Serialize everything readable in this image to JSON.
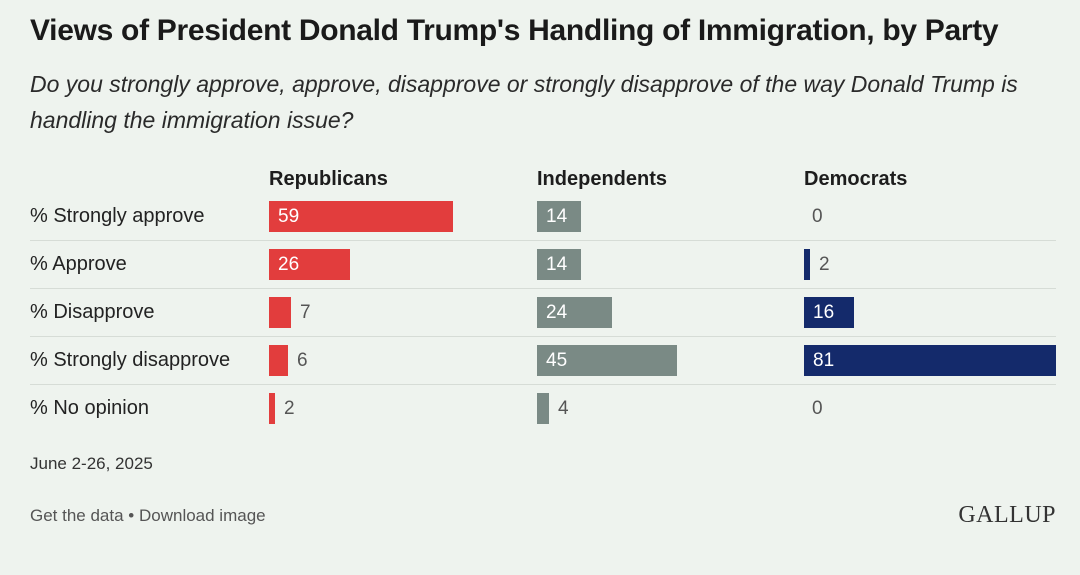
{
  "title": "Views of President Donald Trump's Handling of Immigration, by Party",
  "subtitle": "Do you strongly approve, approve, disapprove or strongly disapprove of the way Donald Trump is handling the immigration issue?",
  "date_note": "June 2-26, 2025",
  "footer": {
    "get_data": "Get the data",
    "separator": " • ",
    "download": "Download image"
  },
  "logo": "GALLUP",
  "colors": {
    "republicans": "#e23d3d",
    "independents": "#7a8a85",
    "democrats": "#142a6b"
  },
  "chart_data": {
    "type": "bar",
    "orientation": "horizontal",
    "title": "Views of President Donald Trump's Handling of Immigration, by Party",
    "categories": [
      "% Strongly approve",
      "% Approve",
      "% Disapprove",
      "% Strongly disapprove",
      "% No opinion"
    ],
    "series": [
      {
        "name": "Republicans",
        "values": [
          59,
          26,
          7,
          6,
          2
        ]
      },
      {
        "name": "Independents",
        "values": [
          14,
          14,
          24,
          45,
          4
        ]
      },
      {
        "name": "Democrats",
        "values": [
          0,
          2,
          16,
          81,
          0
        ]
      }
    ],
    "xlim": [
      0,
      81
    ],
    "grid": false,
    "legend": "column headers"
  }
}
